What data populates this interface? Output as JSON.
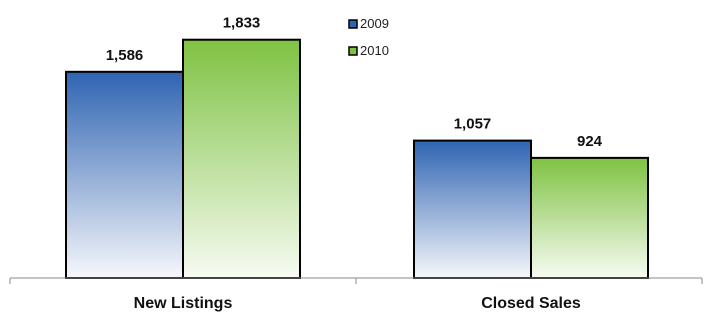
{
  "chart_data": {
    "type": "bar",
    "categories": [
      "New Listings",
      "Closed Sales"
    ],
    "series": [
      {
        "name": "2009",
        "values": [
          1586,
          1057
        ],
        "labels": [
          "1,586",
          "1,057"
        ]
      },
      {
        "name": "2010",
        "values": [
          1833,
          924
        ],
        "labels": [
          "1,833",
          "924"
        ]
      }
    ],
    "ylim": [
      0,
      2000
    ],
    "grid": false,
    "legend_position": "top-right",
    "colors": {
      "2009": {
        "top": "#2f64b2",
        "bottom": "#f6f7fb"
      },
      "2010": {
        "top": "#7ec242",
        "bottom": "#f7fbf2"
      },
      "outline": "#000000",
      "axis": "#888888"
    }
  }
}
